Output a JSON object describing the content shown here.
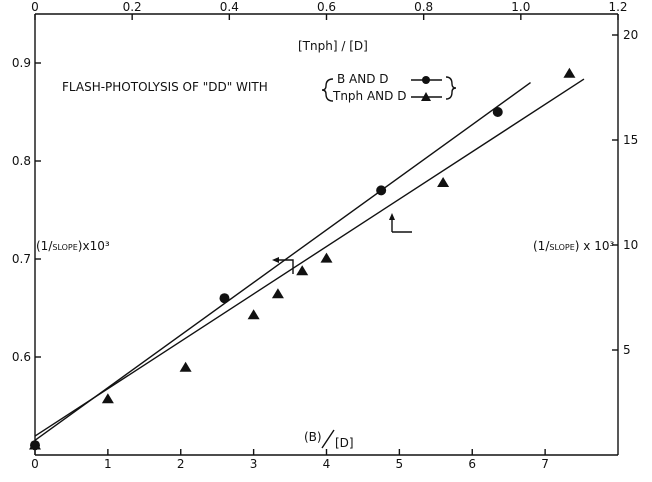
{
  "chart_data": {
    "type": "scatter",
    "title": "FLASH-PHOTOLYSIS OF \"DD\" WITH",
    "legend": {
      "placement": "top-center",
      "entries": [
        {
          "label": "B AND D",
          "marker": "circle"
        },
        {
          "label": "Tnph AND D",
          "marker": "triangle"
        }
      ]
    },
    "axes": {
      "bottom": {
        "label_num": "(B)",
        "label_den": "[D]",
        "range": [
          0,
          8
        ],
        "ticks": [
          "0",
          "1",
          "2",
          "3",
          "4",
          "5",
          "6",
          "7"
        ]
      },
      "top": {
        "label": "[Tnph] / [D]",
        "range": [
          0,
          1.2
        ],
        "ticks": [
          "0",
          "0.2",
          "0.4",
          "0.6",
          "0.8",
          "1.0",
          "1.2"
        ]
      },
      "left": {
        "label_pre": "(1/",
        "label_small": "SLOPE",
        "label_post": ")x10³",
        "range": [
          0.5,
          0.95
        ],
        "ticks": [
          "0.6",
          "0.7",
          "0.8",
          "0.9"
        ]
      },
      "right": {
        "label_pre": "(1/",
        "label_small": "SLOPE",
        "label_post": ") x 10³",
        "range": [
          0,
          21
        ],
        "ticks": [
          "5",
          "10",
          "15",
          "20"
        ]
      }
    },
    "series": [
      {
        "name": "B AND D",
        "marker": "circle",
        "x_axis": "bottom",
        "y_axis": "left",
        "points": [
          [
            0.0,
            0.51
          ],
          [
            2.6,
            0.66
          ],
          [
            4.75,
            0.77
          ],
          [
            6.35,
            0.85
          ]
        ],
        "fit_line": [
          [
            0.0,
            0.515
          ],
          [
            6.8,
            0.88
          ]
        ]
      },
      {
        "name": "Tnph AND D",
        "marker": "triangle",
        "x_axis": "top",
        "y_axis": "right",
        "points": [
          [
            0.0,
            0.5
          ],
          [
            0.15,
            2.7
          ],
          [
            0.31,
            4.2
          ],
          [
            0.45,
            6.7
          ],
          [
            0.5,
            7.7
          ],
          [
            0.55,
            8.8
          ],
          [
            0.6,
            9.4
          ],
          [
            0.84,
            13.0
          ],
          [
            1.1,
            18.2
          ]
        ],
        "fit_line": [
          [
            0.0,
            0.9
          ],
          [
            1.13,
            17.9
          ]
        ]
      }
    ],
    "grid": false
  }
}
